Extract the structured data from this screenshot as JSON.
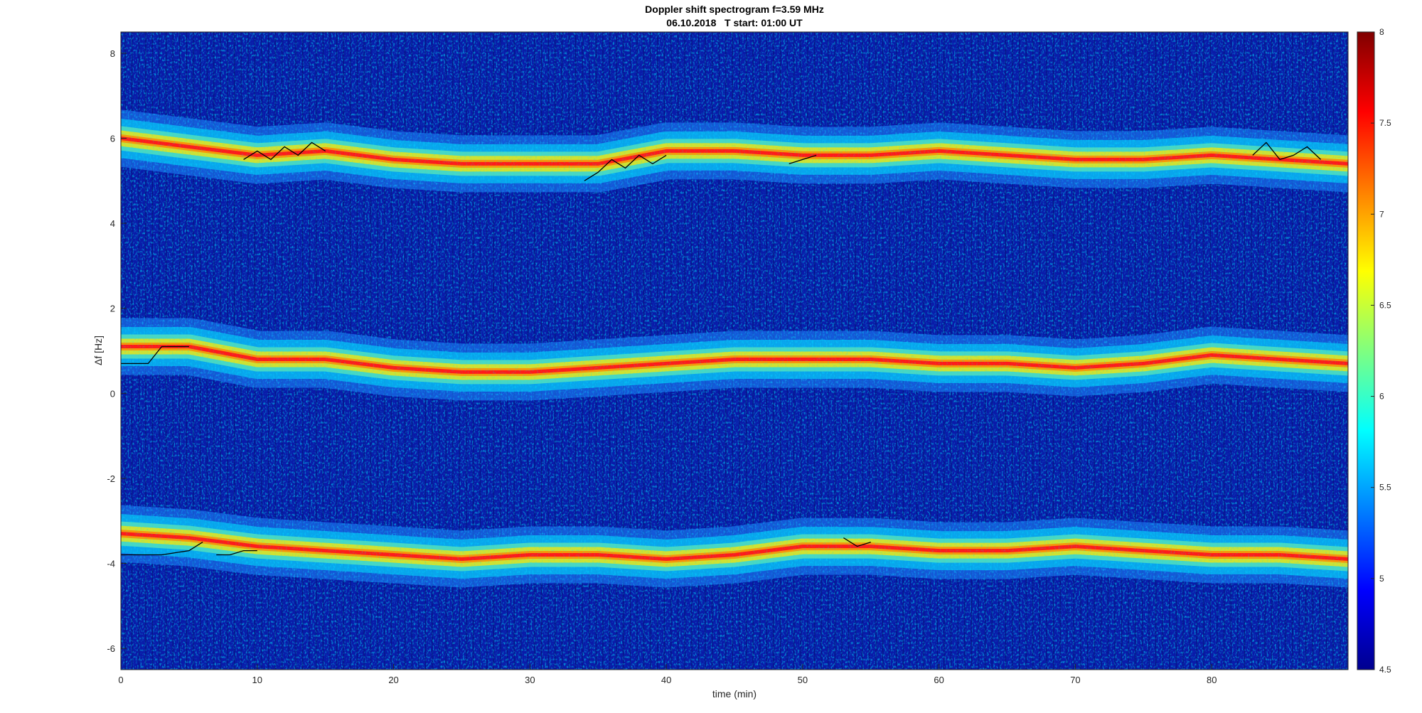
{
  "chart_data": {
    "type": "heatmap",
    "title": "Doppler shift spectrogram f=3.59 MHz",
    "subtitle": "06.10.2018   T start: 01:00 UT",
    "xlabel": "time (min)",
    "ylabel": "Δf [Hz]",
    "xlim": [
      0,
      90
    ],
    "ylim": [
      -6.5,
      8.5
    ],
    "x_ticks": [
      0,
      10,
      20,
      30,
      40,
      50,
      60,
      70,
      80
    ],
    "y_ticks": [
      -6,
      -4,
      -2,
      0,
      2,
      4,
      6,
      8
    ],
    "colorbar": {
      "colormap": "jet",
      "clim": [
        4.5,
        8
      ],
      "ticks": [
        4.5,
        5,
        5.5,
        6,
        6.5,
        7,
        7.5,
        8
      ]
    },
    "bands": [
      {
        "x": [
          0,
          5,
          10,
          15,
          20,
          25,
          30,
          35,
          40,
          45,
          50,
          55,
          60,
          65,
          70,
          75,
          80,
          85,
          90
        ],
        "y": [
          6.0,
          5.8,
          5.6,
          5.7,
          5.5,
          5.4,
          5.4,
          5.4,
          5.7,
          5.7,
          5.6,
          5.6,
          5.7,
          5.6,
          5.5,
          5.5,
          5.6,
          5.5,
          5.4
        ]
      },
      {
        "x": [
          0,
          5,
          10,
          15,
          20,
          25,
          30,
          35,
          40,
          45,
          50,
          55,
          60,
          65,
          70,
          75,
          80,
          85,
          90
        ],
        "y": [
          1.1,
          1.1,
          0.8,
          0.8,
          0.6,
          0.5,
          0.5,
          0.6,
          0.7,
          0.8,
          0.8,
          0.8,
          0.7,
          0.7,
          0.6,
          0.7,
          0.9,
          0.8,
          0.7
        ]
      },
      {
        "x": [
          0,
          5,
          10,
          15,
          20,
          25,
          30,
          35,
          40,
          45,
          50,
          55,
          60,
          65,
          70,
          75,
          80,
          85,
          90
        ],
        "y": [
          -3.3,
          -3.4,
          -3.6,
          -3.7,
          -3.8,
          -3.9,
          -3.8,
          -3.8,
          -3.9,
          -3.8,
          -3.6,
          -3.6,
          -3.7,
          -3.7,
          -3.6,
          -3.7,
          -3.8,
          -3.8,
          -3.9
        ]
      }
    ],
    "trace_segments": [
      {
        "x": [
          0,
          2,
          3,
          5
        ],
        "y": [
          0.7,
          0.7,
          1.1,
          1.1
        ]
      },
      {
        "x": [
          0,
          3,
          5,
          6
        ],
        "y": [
          -3.8,
          -3.8,
          -3.7,
          -3.5
        ]
      },
      {
        "x": [
          7,
          8,
          9,
          10
        ],
        "y": [
          -3.8,
          -3.8,
          -3.7,
          -3.7
        ]
      },
      {
        "x": [
          9,
          10,
          11,
          12,
          13,
          14,
          15
        ],
        "y": [
          5.5,
          5.7,
          5.5,
          5.8,
          5.6,
          5.9,
          5.7
        ]
      },
      {
        "x": [
          34,
          35,
          36,
          37,
          38,
          39,
          40
        ],
        "y": [
          5.0,
          5.2,
          5.5,
          5.3,
          5.6,
          5.4,
          5.6
        ]
      },
      {
        "x": [
          49,
          50,
          51
        ],
        "y": [
          5.4,
          5.5,
          5.6
        ]
      },
      {
        "x": [
          53,
          54,
          55
        ],
        "y": [
          -3.4,
          -3.6,
          -3.5
        ]
      },
      {
        "x": [
          83,
          84,
          85,
          86,
          87,
          88
        ],
        "y": [
          5.6,
          5.9,
          5.5,
          5.6,
          5.8,
          5.5
        ]
      }
    ]
  }
}
